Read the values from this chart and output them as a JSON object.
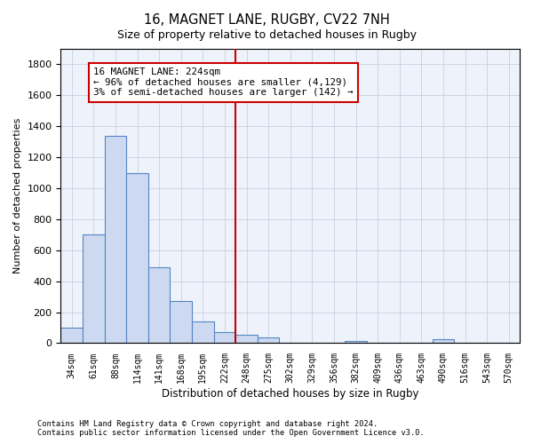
{
  "title": "16, MAGNET LANE, RUGBY, CV22 7NH",
  "subtitle": "Size of property relative to detached houses in Rugby",
  "xlabel": "Distribution of detached houses by size in Rugby",
  "ylabel": "Number of detached properties",
  "categories": [
    "34sqm",
    "61sqm",
    "88sqm",
    "114sqm",
    "141sqm",
    "168sqm",
    "195sqm",
    "222sqm",
    "248sqm",
    "275sqm",
    "302sqm",
    "329sqm",
    "356sqm",
    "382sqm",
    "409sqm",
    "436sqm",
    "463sqm",
    "490sqm",
    "516sqm",
    "543sqm",
    "570sqm"
  ],
  "values": [
    100,
    700,
    1340,
    1100,
    490,
    270,
    140,
    70,
    55,
    35,
    0,
    0,
    0,
    15,
    0,
    0,
    0,
    25,
    0,
    0,
    0
  ],
  "bar_color": "#ccd9f0",
  "bar_edge_color": "#5585c5",
  "vline_x": 7.5,
  "vline_color": "#cc0000",
  "annotation_text": "16 MAGNET LANE: 224sqm\n← 96% of detached houses are smaller (4,129)\n3% of semi-detached houses are larger (142) →",
  "annotation_box_color": "#cc0000",
  "ylim": [
    0,
    1900
  ],
  "yticks": [
    0,
    200,
    400,
    600,
    800,
    1000,
    1200,
    1400,
    1600,
    1800
  ],
  "footer1": "Contains HM Land Registry data © Crown copyright and database right 2024.",
  "footer2": "Contains public sector information licensed under the Open Government Licence v3.0.",
  "bg_color": "#eef2fb",
  "grid_color": "#c8d0e0"
}
